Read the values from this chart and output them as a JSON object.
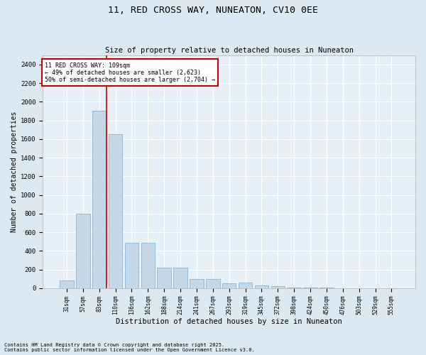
{
  "title": "11, RED CROSS WAY, NUNEATON, CV10 0EE",
  "subtitle": "Size of property relative to detached houses in Nuneaton",
  "xlabel": "Distribution of detached houses by size in Nuneaton",
  "ylabel": "Number of detached properties",
  "categories": [
    "31sqm",
    "57sqm",
    "83sqm",
    "110sqm",
    "136sqm",
    "162sqm",
    "188sqm",
    "214sqm",
    "241sqm",
    "267sqm",
    "293sqm",
    "319sqm",
    "345sqm",
    "372sqm",
    "398sqm",
    "424sqm",
    "450sqm",
    "476sqm",
    "503sqm",
    "529sqm",
    "555sqm"
  ],
  "values": [
    80,
    800,
    1900,
    1650,
    490,
    490,
    220,
    220,
    100,
    100,
    50,
    60,
    28,
    25,
    10,
    5,
    3,
    2,
    1,
    1,
    0
  ],
  "bar_color": "#c5d8e8",
  "bar_edge_color": "#7aabcc",
  "ylim": [
    0,
    2500
  ],
  "yticks": [
    0,
    200,
    400,
    600,
    800,
    1000,
    1200,
    1400,
    1600,
    1800,
    2000,
    2200,
    2400
  ],
  "vline_x": 2.45,
  "vline_color": "#cc0000",
  "annotation_text": "11 RED CROSS WAY: 109sqm\n← 49% of detached houses are smaller (2,623)\n50% of semi-detached houses are larger (2,704) →",
  "annotation_box_color": "#cc0000",
  "footer_line1": "Contains HM Land Registry data © Crown copyright and database right 2025.",
  "footer_line2": "Contains public sector information licensed under the Open Government Licence v3.0.",
  "bg_color": "#dce9f2",
  "plot_bg_color": "#e8f0f7",
  "grid_color": "#ffffff",
  "title_fontsize": 9.5,
  "subtitle_fontsize": 7.5,
  "xlabel_fontsize": 7.5,
  "ylabel_fontsize": 7.0,
  "xtick_fontsize": 5.5,
  "ytick_fontsize": 6.5,
  "footer_fontsize": 5.0,
  "annot_fontsize": 6.0
}
